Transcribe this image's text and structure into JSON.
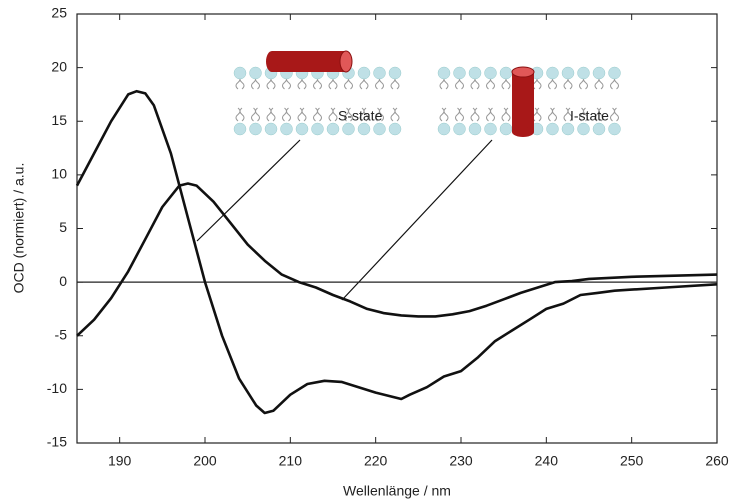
{
  "chart_data": {
    "type": "line",
    "xlabel": "Wellenlänge / nm",
    "ylabel": "OCD (normiert) / a.u.",
    "xlim": [
      185,
      260
    ],
    "xticks": [
      190,
      200,
      210,
      220,
      230,
      240,
      250,
      260
    ],
    "ylim": [
      -15,
      25
    ],
    "yticks": [
      -15,
      -10,
      -5,
      0,
      5,
      10,
      15,
      20,
      25
    ],
    "reference_line": 0,
    "series": [
      {
        "name": "S-state",
        "color": "#111111",
        "x": [
          185,
          187,
          189,
          191,
          192,
          193,
          194,
          196,
          198,
          200,
          202,
          204,
          206,
          207,
          208,
          210,
          212,
          214,
          216,
          218,
          220,
          222,
          223,
          224,
          226,
          228,
          230,
          232,
          234,
          236,
          238,
          240,
          242,
          244,
          246,
          248,
          250,
          254,
          260
        ],
        "values": [
          9,
          12,
          15,
          17.5,
          17.8,
          17.6,
          16.5,
          12,
          6,
          0,
          -5,
          -9,
          -11.5,
          -12.2,
          -12,
          -10.5,
          -9.5,
          -9.2,
          -9.3,
          -9.8,
          -10.3,
          -10.7,
          -10.9,
          -10.5,
          -9.8,
          -8.8,
          -8.3,
          -7,
          -5.5,
          -4.5,
          -3.5,
          -2.5,
          -2,
          -1.2,
          -1,
          -0.8,
          -0.7,
          -0.5,
          -0.2
        ]
      },
      {
        "name": "I-state",
        "color": "#111111",
        "x": [
          185,
          187,
          189,
          191,
          193,
          195,
          197,
          198,
          199,
          201,
          203,
          205,
          207,
          209,
          211,
          213,
          215,
          217,
          219,
          221,
          223,
          225,
          227,
          229,
          231,
          233,
          235,
          237,
          239,
          241,
          243,
          245,
          250,
          255,
          260
        ],
        "values": [
          -5,
          -3.5,
          -1.5,
          1,
          4,
          7,
          9,
          9.2,
          9,
          7.5,
          5.5,
          3.5,
          2,
          0.7,
          0,
          -0.5,
          -1.2,
          -1.8,
          -2.5,
          -2.9,
          -3.1,
          -3.2,
          -3.2,
          -3,
          -2.7,
          -2.2,
          -1.6,
          -1,
          -0.5,
          0,
          0.1,
          0.3,
          0.5,
          0.6,
          0.7
        ]
      }
    ]
  }
}
